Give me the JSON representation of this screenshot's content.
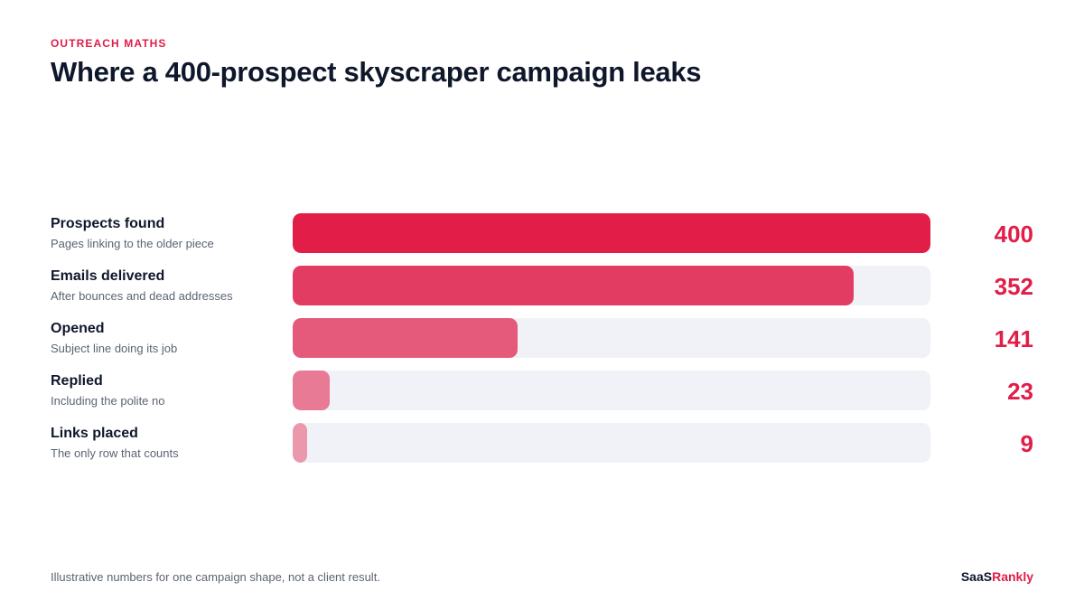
{
  "eyebrow": "OUTREACH MATHS",
  "title": "Where a 400-prospect skyscraper campaign leaks",
  "footnote": "Illustrative numbers for one campaign shape, not a client result.",
  "brand": {
    "part1": "SaaS",
    "part2": "Rankly"
  },
  "colors": {
    "accent": "#e11d48",
    "track": "#f1f2f7",
    "bars": [
      "#e11d48",
      "#e23c62",
      "#e55a7a",
      "#e87a95",
      "#eb98ad"
    ]
  },
  "chart_data": {
    "type": "bar",
    "orientation": "horizontal",
    "categories": [
      "Prospects found",
      "Emails delivered",
      "Opened",
      "Replied",
      "Links placed"
    ],
    "subtitles": [
      "Pages linking to the older piece",
      "After bounces and dead addresses",
      "Subject line doing its job",
      "Including the polite no",
      "The only row that counts"
    ],
    "values": [
      400,
      352,
      141,
      23,
      9
    ],
    "xlim": [
      0,
      400
    ],
    "grid": false,
    "legend": "none"
  }
}
